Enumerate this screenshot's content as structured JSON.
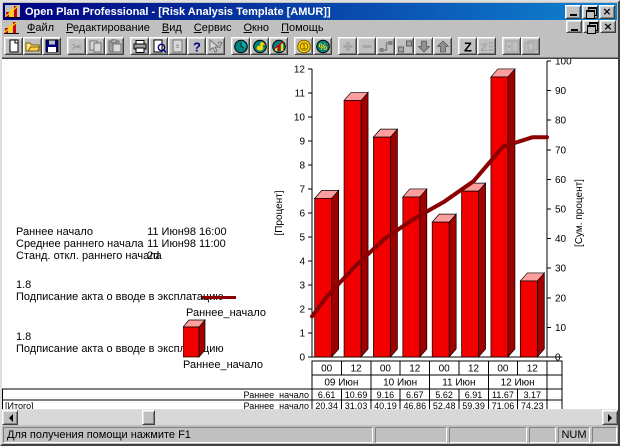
{
  "window": {
    "title": "Open Plan Professional - [Risk Analysis Template [AMUR]]"
  },
  "menu": {
    "items": [
      {
        "id": "file",
        "label": "Файл"
      },
      {
        "id": "edit",
        "label": "Редактирование"
      },
      {
        "id": "view",
        "label": "Вид"
      },
      {
        "id": "tools",
        "label": "Сервис"
      },
      {
        "id": "window",
        "label": "Окно"
      },
      {
        "id": "help",
        "label": "Помощь"
      }
    ]
  },
  "toolbar": {
    "groups": [
      [
        {
          "id": "new",
          "disabled": false
        },
        {
          "id": "open",
          "disabled": false
        },
        {
          "id": "save",
          "disabled": false
        }
      ],
      [
        {
          "id": "cut",
          "disabled": true
        },
        {
          "id": "copy",
          "disabled": true
        },
        {
          "id": "paste",
          "disabled": true
        }
      ],
      [
        {
          "id": "print",
          "disabled": false
        },
        {
          "id": "print-preview",
          "disabled": false
        },
        {
          "id": "page-setup",
          "disabled": true
        },
        {
          "id": "help",
          "disabled": false
        },
        {
          "id": "context-help",
          "disabled": true
        }
      ],
      [
        {
          "id": "time-analysis",
          "disabled": false
        },
        {
          "id": "resource-analysis",
          "disabled": false
        },
        {
          "id": "risk-analysis",
          "disabled": false
        }
      ],
      [
        {
          "id": "cost",
          "disabled": false
        },
        {
          "id": "percent-complete",
          "disabled": false
        }
      ],
      [
        {
          "id": "add",
          "disabled": true
        },
        {
          "id": "remove",
          "disabled": true
        },
        {
          "id": "link",
          "disabled": false
        },
        {
          "id": "unlink",
          "disabled": false
        },
        {
          "id": "move-down",
          "disabled": false
        },
        {
          "id": "move-up",
          "disabled": false
        }
      ],
      [
        {
          "id": "sort",
          "disabled": false
        },
        {
          "id": "sort-options",
          "disabled": true
        }
      ],
      [
        {
          "id": "tile",
          "disabled": true
        },
        {
          "id": "cascade",
          "disabled": true
        }
      ]
    ]
  },
  "info": {
    "rows": [
      {
        "label": "Раннее начало",
        "value": "11 Июн98 16:00"
      },
      {
        "label": "Среднее раннего начала",
        "value": "11 Июн98 11:00"
      },
      {
        "label": "Станд. откл.  раннего начала",
        "value": "2d"
      }
    ]
  },
  "legend": [
    {
      "value": "1.8",
      "text": "Подписание акта о вводе в эксплатацию",
      "swatch": "line",
      "series": "Раннее_начало"
    },
    {
      "value": "1.8",
      "text": "Подписание акта о вводе в эксплатацию",
      "swatch": "bar",
      "series": "Раннее_начало"
    }
  ],
  "chart_data": {
    "type": "bar",
    "title": "",
    "categories": [
      "09 Июн 00",
      "09 Июн 12",
      "10 Июн 00",
      "10 Июн 12",
      "11 Июн 00",
      "11 Июн 12",
      "12 Июн 00",
      "12 Июн 12"
    ],
    "hour_labels": [
      "00",
      "12",
      "00",
      "12",
      "00",
      "12",
      "00",
      "12"
    ],
    "dates": [
      "09 Июн",
      "10 Июн",
      "11 Июн",
      "12 Июн"
    ],
    "ylabel_left": "[Процент]",
    "ylabel_right": "[Сум. процент]",
    "ylim_left": [
      0,
      12
    ],
    "ytick_step_left": 1,
    "ylim_right": [
      0,
      100
    ],
    "ytick_step_right": 10,
    "grid": false,
    "legend_position": "none",
    "series": [
      {
        "name": "Раннее_начало",
        "type": "bar",
        "axis": "left",
        "values": [
          6.61,
          10.69,
          9.16,
          6.67,
          5.62,
          6.91,
          11.67,
          3.17
        ]
      },
      {
        "name": "Раннее_начало",
        "type": "line",
        "axis": "right",
        "start_value": 13.73,
        "values": [
          20.34,
          31.03,
          40.19,
          46.86,
          52.48,
          59.39,
          71.06,
          74.23
        ]
      }
    ],
    "table": {
      "row1_label": "Раннее_начало",
      "row2_left": "[Итого]",
      "row2_label": "Раннее_начало"
    }
  },
  "statusbar": {
    "help": "Для получения помощи нажмите F1",
    "num": "NUM"
  },
  "colors": {
    "titlebar_start": "#000080",
    "titlebar_end": "#1084d0",
    "bar_front": "#f20000",
    "bar_top": "#ff9e9e",
    "bar_side": "#a00000",
    "line": "#8b0000",
    "chrome": "#c0c0c0"
  }
}
